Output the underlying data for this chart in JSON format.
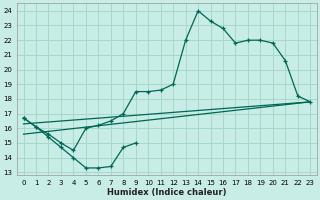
{
  "xlabel": "Humidex (Indice chaleur)",
  "background_color": "#c8ece6",
  "grid_color": "#a8d8cc",
  "line_color": "#006655",
  "xlim": [
    -0.5,
    23.5
  ],
  "ylim": [
    12.8,
    24.5
  ],
  "yticks": [
    13,
    14,
    15,
    16,
    17,
    18,
    19,
    20,
    21,
    22,
    23,
    24
  ],
  "xticks": [
    0,
    1,
    2,
    3,
    4,
    5,
    6,
    7,
    8,
    9,
    10,
    11,
    12,
    13,
    14,
    15,
    16,
    17,
    18,
    19,
    20,
    21,
    22,
    23
  ],
  "curve_main_x": [
    0,
    1,
    2,
    3,
    4,
    5,
    6,
    7,
    8,
    9,
    10,
    11,
    12,
    13,
    14,
    15,
    16,
    17,
    18,
    19,
    20,
    21,
    22,
    23
  ],
  "curve_main_y": [
    16.7,
    16.1,
    15.6,
    15.0,
    14.5,
    16.0,
    16.2,
    16.5,
    17.0,
    18.5,
    18.5,
    18.6,
    19.0,
    22.0,
    24.0,
    23.3,
    22.8,
    21.8,
    22.0,
    22.0,
    21.8,
    20.6,
    18.2,
    17.8
  ],
  "curve_low_x": [
    0,
    1,
    2,
    3,
    4,
    5,
    6,
    7,
    8,
    9
  ],
  "curve_low_y": [
    16.7,
    16.1,
    15.4,
    14.7,
    14.0,
    13.3,
    13.3,
    13.4,
    14.7,
    15.0
  ],
  "trend1_x": [
    0,
    23
  ],
  "trend1_y": [
    16.3,
    17.8
  ],
  "trend2_x": [
    0,
    23
  ],
  "trend2_y": [
    15.6,
    17.8
  ]
}
